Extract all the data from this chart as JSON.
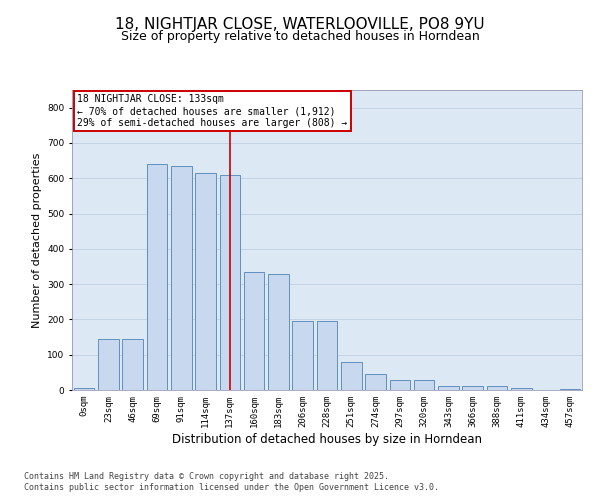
{
  "title": "18, NIGHTJAR CLOSE, WATERLOOVILLE, PO8 9YU",
  "subtitle": "Size of property relative to detached houses in Horndean",
  "xlabel": "Distribution of detached houses by size in Horndean",
  "ylabel": "Number of detached properties",
  "categories": [
    "0sqm",
    "23sqm",
    "46sqm",
    "69sqm",
    "91sqm",
    "114sqm",
    "137sqm",
    "160sqm",
    "183sqm",
    "206sqm",
    "228sqm",
    "251sqm",
    "274sqm",
    "297sqm",
    "320sqm",
    "343sqm",
    "366sqm",
    "388sqm",
    "411sqm",
    "434sqm",
    "457sqm"
  ],
  "values": [
    5,
    145,
    145,
    640,
    635,
    615,
    610,
    335,
    330,
    195,
    195,
    80,
    45,
    28,
    28,
    10,
    10,
    12,
    5,
    0,
    2
  ],
  "bar_color": "#c8d8ee",
  "bar_edge_color": "#6090c0",
  "bar_edge_width": 0.7,
  "vline_color": "#cc0000",
  "vline_index": 6,
  "annotation_text": "18 NIGHTJAR CLOSE: 133sqm\n← 70% of detached houses are smaller (1,912)\n29% of semi-detached houses are larger (808) →",
  "annotation_box_facecolor": "#ffffff",
  "annotation_box_edgecolor": "#cc0000",
  "ylim": [
    0,
    850
  ],
  "yticks": [
    0,
    100,
    200,
    300,
    400,
    500,
    600,
    700,
    800
  ],
  "grid_color": "#c0cfe0",
  "background_color": "#dce8f4",
  "footer1": "Contains HM Land Registry data © Crown copyright and database right 2025.",
  "footer2": "Contains public sector information licensed under the Open Government Licence v3.0.",
  "title_fontsize": 11,
  "subtitle_fontsize": 9,
  "tick_fontsize": 6.5,
  "xlabel_fontsize": 8.5,
  "ylabel_fontsize": 8,
  "annotation_fontsize": 7,
  "footer_fontsize": 6
}
